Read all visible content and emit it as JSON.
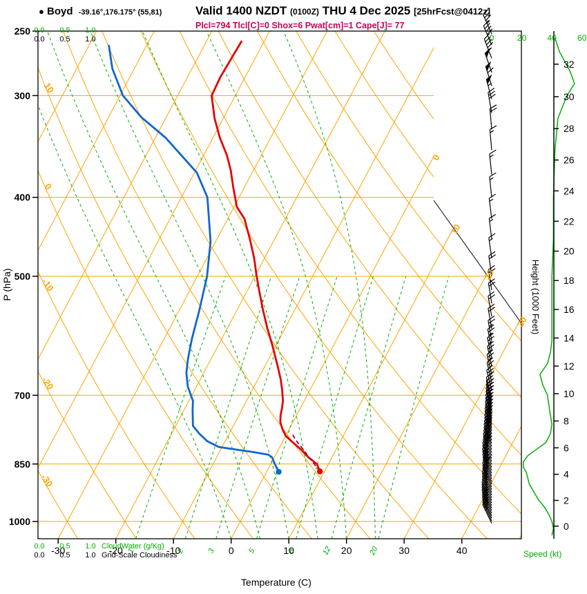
{
  "header": {
    "bullet": "●",
    "station": "Boyd",
    "station_info": "-39.16°,176.175° (55,81)",
    "valid_prefix": "Valid 1400 NZDT",
    "valid_zulu": "(0100Z)",
    "valid_date": "THU 4 Dec 2025",
    "forecast_tag": "[25hrFcst@0412z]",
    "params": "Plcl=794 Tlcl[C]=0 Shox=6 Pwat[cm]=1 Cape[J]= 77"
  },
  "axes": {
    "pressure_label": "P (hPa)",
    "pressure_ticks": [
      250,
      300,
      400,
      500,
      700,
      850,
      1000
    ],
    "temp_label": "Temperature (C)",
    "temp_ticks": [
      -30,
      -20,
      -10,
      0,
      10,
      20,
      30,
      40
    ],
    "height_label": "Height (1000 Feet)",
    "height_ticks": [
      0,
      2,
      4,
      6,
      8,
      10,
      12,
      14,
      16,
      18,
      20,
      22,
      24,
      26,
      28,
      30,
      32
    ],
    "speed_label": "Speed (kt)",
    "speed_ticks": [
      0,
      20,
      40,
      60
    ],
    "cloudwater_label": "CloudWater (g/Kg)",
    "cloudiness_label": "Grid-Scale Cloudiness",
    "cw_scale": [
      "0.0",
      "0.5",
      "1.0"
    ],
    "isotherm_inline_labels": [
      0,
      10,
      20,
      30
    ],
    "adiabat_inline_labels": [
      10,
      0,
      -10,
      -20,
      -30
    ],
    "mixing_labels": [
      1,
      2,
      3,
      5,
      8,
      12,
      20
    ]
  },
  "colors": {
    "orange": "#FFA300",
    "green": "#00AE00",
    "red": "#E60000",
    "blue": "#1166CC",
    "parcel": "#90004B",
    "params": "#CC0055",
    "black": "#000000"
  },
  "chart_data": {
    "type": "line",
    "subtype": "skew-t-log-p-sounding",
    "title": "Boyd skew-T sounding, Valid 1400 NZDT (0100Z) THU 4 Dec 2025, 25hrFcst@0412z",
    "xlabel": "Temperature (C)",
    "ylabel": "P (hPa)",
    "xlim": [
      -33.5,
      50.3
    ],
    "ylim": [
      1050,
      250
    ],
    "isobars": [
      300,
      400,
      500,
      700,
      850,
      1000
    ],
    "mixing_ratio_lines": [
      1,
      2,
      3,
      5,
      8,
      12,
      20
    ],
    "moist_adiabats_C": [
      0,
      5,
      10,
      15,
      20,
      25
    ],
    "temperature_profile": {
      "pressure_hPa": [
        868,
        850,
        834,
        815,
        797,
        785,
        770,
        755,
        740,
        725,
        711,
        690,
        670,
        650,
        630,
        608,
        580,
        550,
        520,
        500,
        475,
        450,
        425,
        411,
        390,
        370,
        355,
        338,
        320,
        300,
        285,
        270,
        257
      ],
      "temp_C": [
        9.2,
        8.0,
        5.9,
        3.8,
        1.5,
        0.0,
        -1.2,
        -2.2,
        -2.8,
        -3.2,
        -3.7,
        -4.8,
        -6.0,
        -7.4,
        -8.9,
        -10.6,
        -13.0,
        -15.5,
        -18.0,
        -19.7,
        -21.8,
        -24.3,
        -27.1,
        -29.5,
        -31.8,
        -34.0,
        -36.0,
        -38.8,
        -41.5,
        -44.1,
        -44.3,
        -44.1,
        -43.9
      ]
    },
    "dewpoint_profile": {
      "pressure_hPa": [
        869,
        850,
        834,
        828,
        822,
        815,
        810,
        797,
        780,
        763,
        730,
        711,
        683,
        657,
        632,
        596,
        551,
        500,
        453,
        400,
        373,
        338,
        319,
        300,
        278,
        260
      ],
      "dewpoint_C": [
        2.1,
        0.7,
        -0.4,
        -1.3,
        -4.0,
        -7.9,
        -10.6,
        -13.1,
        -15.2,
        -17.0,
        -18.5,
        -19.3,
        -21.5,
        -23.0,
        -24.0,
        -25.2,
        -26.5,
        -28.3,
        -30.9,
        -35.5,
        -39.6,
        -48.2,
        -54.3,
        -59.5,
        -63.8,
        -66.6
      ]
    },
    "parcel_path": {
      "pressure_hPa": [
        868,
        840,
        820,
        800,
        794,
        780
      ],
      "temp_C": [
        9.2,
        6.6,
        4.7,
        2.7,
        2.1,
        0.9
      ]
    },
    "surface_dots": {
      "temperature": {
        "pressure_hPa": 868,
        "temp_C": 9.2
      },
      "dewpoint": {
        "pressure_hPa": 869,
        "temp_C": 2.1
      }
    },
    "wind_speed_profile": {
      "pressure_hPa": [
        1040,
        1020,
        1000,
        980,
        960,
        940,
        920,
        900,
        885,
        870,
        858,
        845,
        830,
        815,
        800,
        780,
        760,
        740,
        720,
        700,
        680,
        660,
        640,
        620,
        600,
        550,
        500,
        450,
        400,
        350,
        320,
        300,
        290,
        280,
        265,
        255
      ],
      "knots": [
        40,
        41,
        40,
        38,
        35,
        31,
        28,
        25,
        24,
        23,
        21,
        21,
        24,
        30,
        36,
        39,
        40,
        39,
        38,
        37,
        34,
        32,
        37,
        39,
        40,
        40,
        40,
        41,
        41,
        42,
        44,
        50,
        55,
        52,
        45,
        42
      ]
    },
    "wind_barbs_p_spd_dir": [
      [
        1005,
        28,
        334
      ],
      [
        998,
        28,
        334
      ],
      [
        991,
        27,
        334
      ],
      [
        984,
        27,
        333
      ],
      [
        977,
        26,
        333
      ],
      [
        970,
        26,
        333
      ],
      [
        963,
        25,
        332
      ],
      [
        956,
        25,
        332
      ],
      [
        949,
        24,
        332
      ],
      [
        942,
        24,
        332
      ],
      [
        935,
        24,
        333
      ],
      [
        928,
        24,
        333
      ],
      [
        921,
        25,
        333
      ],
      [
        914,
        25,
        333
      ],
      [
        907,
        26,
        334
      ],
      [
        900,
        27,
        334
      ],
      [
        893,
        28,
        334
      ],
      [
        886,
        29,
        335
      ],
      [
        879,
        30,
        335
      ],
      [
        872,
        28,
        334
      ],
      [
        865,
        26,
        334
      ],
      [
        858,
        25,
        333
      ],
      [
        851,
        26,
        334
      ],
      [
        844,
        28,
        334
      ],
      [
        837,
        31,
        335
      ],
      [
        830,
        33,
        336
      ],
      [
        823,
        34,
        336
      ],
      [
        816,
        35,
        337
      ],
      [
        809,
        34,
        338
      ],
      [
        802,
        33,
        338
      ],
      [
        795,
        32,
        339
      ],
      [
        788,
        33,
        340
      ],
      [
        781,
        35,
        340
      ],
      [
        774,
        36,
        341
      ],
      [
        767,
        37,
        341
      ],
      [
        760,
        38,
        342
      ],
      [
        753,
        38,
        342
      ],
      [
        746,
        38,
        343
      ],
      [
        739,
        37,
        343
      ],
      [
        732,
        36,
        344
      ],
      [
        725,
        35,
        344
      ],
      [
        718,
        34,
        345
      ],
      [
        711,
        33,
        345
      ],
      [
        704,
        32,
        345
      ],
      [
        690,
        30,
        346
      ],
      [
        675,
        29,
        347
      ],
      [
        660,
        28,
        347
      ],
      [
        645,
        27,
        348
      ],
      [
        630,
        26,
        348
      ],
      [
        615,
        25,
        349
      ],
      [
        600,
        25,
        350
      ],
      [
        580,
        24,
        350
      ],
      [
        560,
        23,
        350
      ],
      [
        540,
        22,
        351
      ],
      [
        520,
        21,
        351
      ],
      [
        500,
        20,
        352
      ],
      [
        475,
        19,
        352
      ],
      [
        450,
        18,
        353
      ],
      [
        425,
        17,
        353
      ],
      [
        400,
        16,
        354
      ],
      [
        375,
        16,
        354
      ],
      [
        350,
        18,
        355
      ],
      [
        330,
        20,
        355
      ],
      [
        315,
        30,
        350
      ],
      [
        303,
        55,
        345
      ],
      [
        292,
        60,
        343
      ],
      [
        281,
        50,
        341
      ],
      [
        270,
        45,
        339
      ],
      [
        260,
        40,
        337
      ],
      [
        252,
        38,
        336
      ]
    ]
  }
}
